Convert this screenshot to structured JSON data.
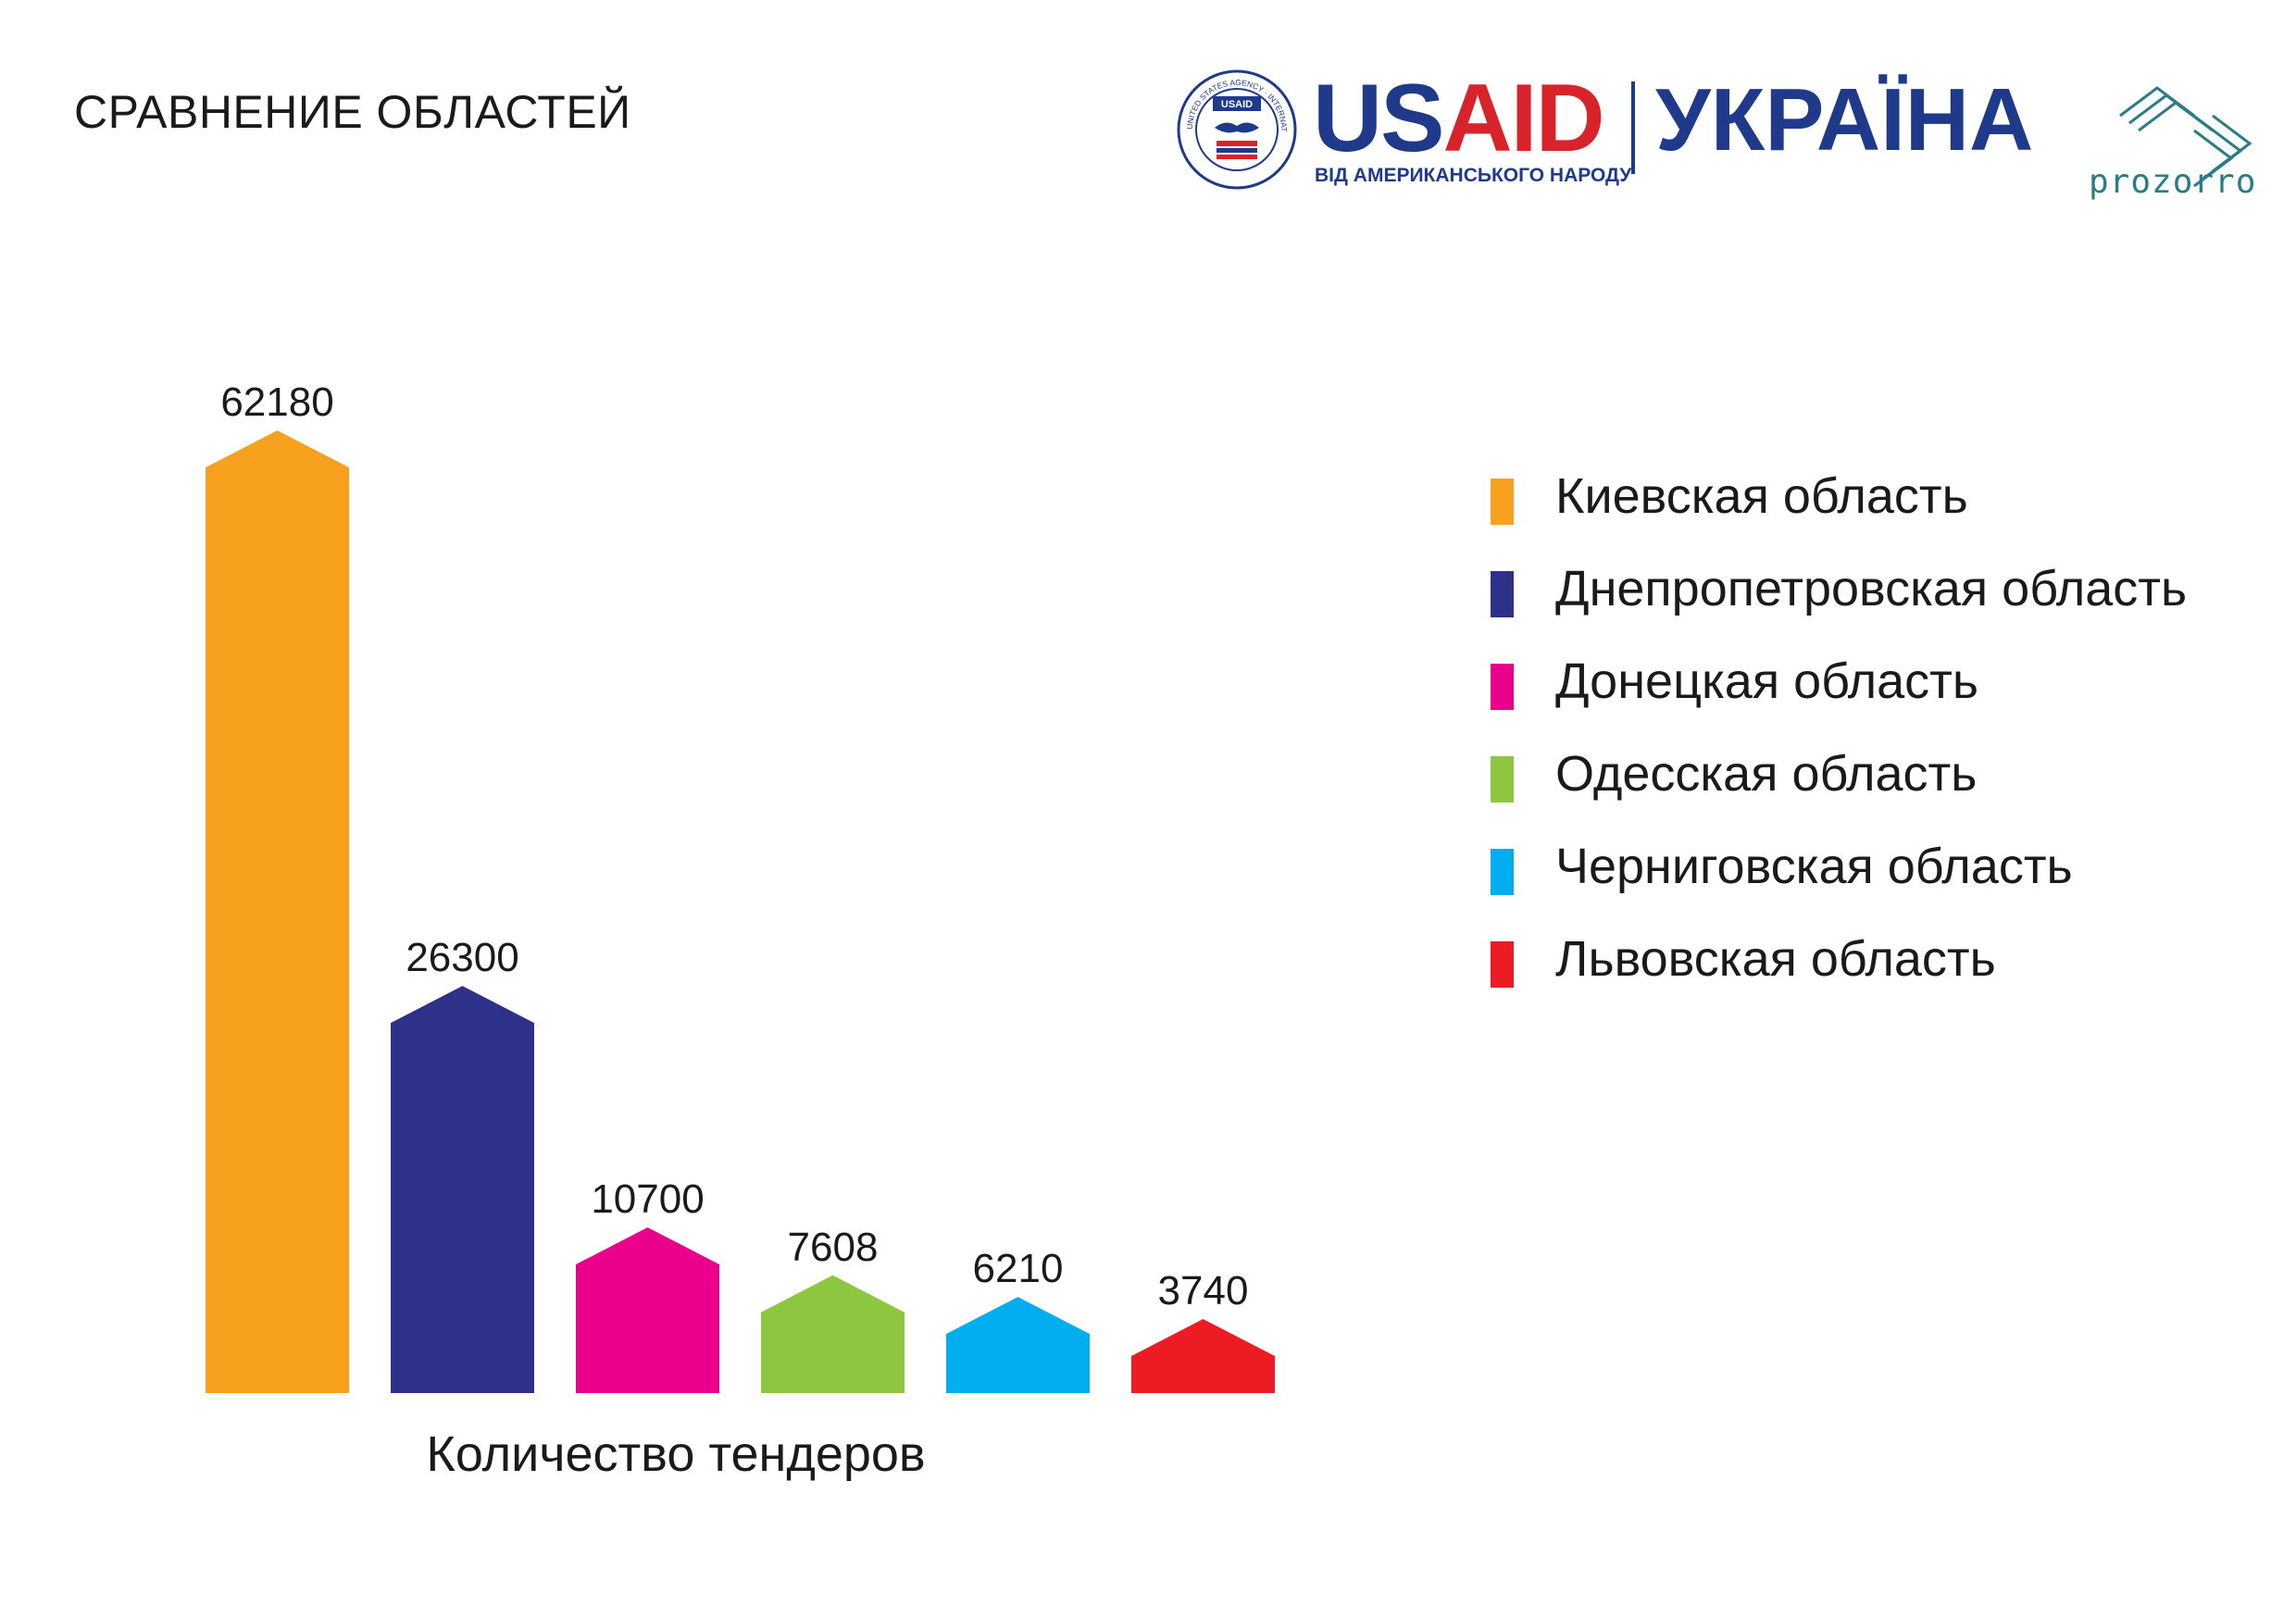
{
  "page": {
    "title": "СРАВНЕНИЕ ОБЛАСТЕЙ"
  },
  "logos": {
    "usaid": {
      "seal_text": "UNITED STATES AGENCY · INTERNATIONAL DEVELOPMENT",
      "seal_center": "USAID",
      "word_us": "US",
      "word_aid": "AID",
      "tagline": "ВІД АМЕРИКАНСЬКОГО НАРОДУ"
    },
    "country": "УКРАЇНА",
    "prozorro": "prozorro"
  },
  "chart_data": {
    "type": "bar",
    "categories": [
      "Киевская область",
      "Днепропетровская область",
      "Донецкая область",
      "Одесская область",
      "Черниговская область",
      "Львовская область"
    ],
    "values": [
      62180,
      26300,
      10700,
      7608,
      6210,
      3740
    ],
    "data_labels": [
      "62180",
      "26300",
      "10700",
      "7608",
      "6210",
      "3740"
    ],
    "colors": [
      "#f7a11f",
      "#2e3189",
      "#ea008b",
      "#8dc63f",
      "#00aeef",
      "#ed1c24"
    ],
    "xlabel": "Количество тендеров",
    "legend_position": "right",
    "grid": false
  }
}
